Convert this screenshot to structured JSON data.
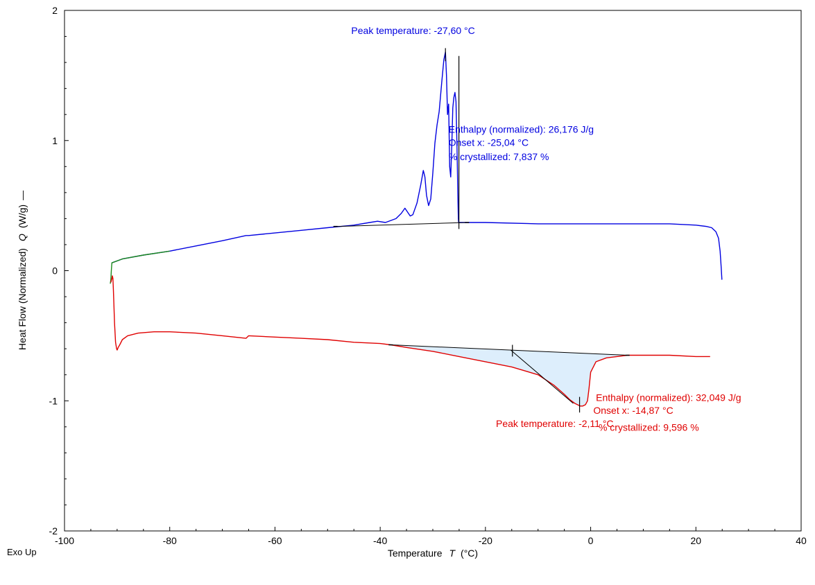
{
  "chart_data": {
    "type": "line",
    "title": "",
    "xlabel": "Temperature",
    "xlabel_symbol": "T",
    "xlabel_unit": "(°C)",
    "ylabel": "Heat Flow (Normalized)",
    "ylabel_symbol": "Q",
    "ylabel_unit": "(W/g)",
    "corner_label": "Exo Up",
    "xlim": [
      -100,
      40
    ],
    "ylim": [
      -2,
      2
    ],
    "x_ticks": [
      -100,
      -80,
      -60,
      -40,
      -20,
      0,
      20,
      40
    ],
    "y_ticks": [
      -2,
      -1,
      0,
      1,
      2
    ],
    "grid": false,
    "series": [
      {
        "color": "#0000e0",
        "x": [
          -91.0,
          -89.0,
          -85.0,
          -80.0,
          -75.0,
          -70.0,
          -65.5,
          -65.0,
          -60.0,
          -55.0,
          -50.0,
          -45.0,
          -42.0,
          -40.5,
          -39.0,
          -37.0,
          -36.0,
          -35.3,
          -34.8,
          -34.3,
          -33.8,
          -33.0,
          -32.3,
          -31.8,
          -31.5,
          -31.2,
          -30.8,
          -30.4,
          -30.0,
          -29.6,
          -29.2,
          -28.8,
          -28.3,
          -27.9,
          -27.6,
          -27.4,
          -27.2,
          -27.0,
          -26.8,
          -26.6,
          -26.4,
          -26.2,
          -26.0,
          -25.8,
          -25.6,
          -25.4,
          -25.25,
          -25.15,
          -25.1,
          -25.05,
          -24.9,
          -24.0,
          -20.0,
          -10.0,
          0.0,
          10.0,
          15.0,
          20.0,
          22.0,
          23.0,
          23.8,
          24.3,
          24.6,
          24.8,
          24.95
        ],
        "y": [
          0.06,
          0.09,
          0.12,
          0.15,
          0.19,
          0.23,
          0.27,
          0.27,
          0.29,
          0.31,
          0.33,
          0.35,
          0.37,
          0.38,
          0.37,
          0.4,
          0.44,
          0.48,
          0.45,
          0.42,
          0.43,
          0.52,
          0.66,
          0.77,
          0.72,
          0.58,
          0.5,
          0.55,
          0.75,
          0.98,
          1.12,
          1.22,
          1.45,
          1.62,
          1.68,
          1.5,
          1.2,
          1.28,
          0.8,
          0.72,
          0.95,
          1.25,
          1.33,
          1.37,
          1.3,
          0.95,
          0.6,
          0.4,
          0.37,
          0.37,
          0.37,
          0.37,
          0.37,
          0.36,
          0.36,
          0.36,
          0.36,
          0.35,
          0.34,
          0.33,
          0.3,
          0.25,
          0.15,
          0.03,
          -0.07
        ]
      },
      {
        "color": "#1a8a1a",
        "x": [
          -91.3,
          -91.2,
          -91.1,
          -91.0,
          -89.0,
          -85.0,
          -80.0
        ],
        "y": [
          -0.1,
          -0.07,
          0.0,
          0.06,
          0.09,
          0.12,
          0.15
        ]
      },
      {
        "color": "#e00000",
        "x": [
          -91.2,
          -91.0,
          -90.9,
          -90.8,
          -90.7,
          -90.5,
          -90.3,
          -90.1,
          -90.0,
          -89.8,
          -89.5,
          -89.0,
          -88.0,
          -86.0,
          -83.0,
          -80.0,
          -75.0,
          -70.0,
          -65.5,
          -65.0,
          -60.0,
          -55.0,
          -50.0,
          -45.0,
          -40.0,
          -38.0,
          -35.0,
          -30.0,
          -25.0,
          -20.0,
          -15.0,
          -10.0,
          -7.0,
          -5.0,
          -4.0,
          -3.0,
          -2.5,
          -2.0,
          -1.5,
          -1.0,
          -0.6,
          -0.3,
          0.0,
          1.0,
          3.0,
          5.0,
          7.0,
          10.0,
          15.0,
          20.0,
          22.7
        ],
        "y": [
          -0.09,
          -0.06,
          -0.04,
          -0.06,
          -0.15,
          -0.4,
          -0.55,
          -0.6,
          -0.61,
          -0.59,
          -0.57,
          -0.53,
          -0.5,
          -0.48,
          -0.47,
          -0.47,
          -0.48,
          -0.5,
          -0.52,
          -0.5,
          -0.51,
          -0.52,
          -0.53,
          -0.55,
          -0.56,
          -0.57,
          -0.59,
          -0.62,
          -0.66,
          -0.7,
          -0.74,
          -0.8,
          -0.88,
          -0.95,
          -0.99,
          -1.02,
          -1.03,
          -1.04,
          -1.04,
          -1.03,
          -1.0,
          -0.9,
          -0.78,
          -0.7,
          -0.67,
          -0.66,
          -0.65,
          -0.65,
          -0.65,
          -0.66,
          -0.66
        ]
      }
    ],
    "baselines": [
      {
        "color": "#000000",
        "x": [
          -48.5,
          -23.5
        ],
        "y": [
          0.34,
          0.37
        ]
      },
      {
        "color": "#000000",
        "x": [
          -38.0,
          7.0
        ],
        "y": [
          -0.57,
          -0.65
        ]
      }
    ],
    "markers": [
      {
        "color": "#000000",
        "x": -27.6,
        "y1": 1.61,
        "y2": 1.71,
        "type": "peak"
      },
      {
        "color": "#000000",
        "x": -25.04,
        "y1": 0.32,
        "y2": 1.65,
        "type": "onset"
      },
      {
        "color": "#000000",
        "x": -2.11,
        "y1": -1.09,
        "y2": -0.97,
        "type": "peak"
      },
      {
        "color": "#000000",
        "x": -14.87,
        "y1": -0.66,
        "y2": -0.57,
        "type": "onset"
      }
    ],
    "onset_tangent": {
      "color": "#000000",
      "x": [
        -15.2,
        -3.3
      ],
      "y": [
        -0.61,
        -1.02
      ]
    },
    "shaded_region": {
      "fill": "#ddeefc",
      "top_x": [
        -38.0,
        7.0
      ],
      "top_y": [
        -0.57,
        -0.65
      ],
      "bottom_x": [
        -38.0,
        -35.0,
        -30.0,
        -25.0,
        -20.0,
        -15.0,
        -10.0,
        -7.0,
        -5.0,
        -4.0,
        -3.0,
        -2.5,
        -2.0,
        -1.5,
        -1.0,
        -0.6,
        -0.3,
        0.0,
        1.0,
        3.0,
        5.0,
        7.0
      ],
      "bottom_y": [
        -0.57,
        -0.59,
        -0.62,
        -0.66,
        -0.7,
        -0.74,
        -0.8,
        -0.88,
        -0.95,
        -0.99,
        -1.02,
        -1.03,
        -1.04,
        -1.04,
        -1.03,
        -1.0,
        -0.9,
        -0.78,
        -0.7,
        -0.67,
        -0.66,
        -0.65
      ]
    },
    "annotations": [
      {
        "text": "Peak temperature: -27,60 °C",
        "color": "#0000e0",
        "x": -45.5,
        "y": 1.82
      },
      {
        "text": "Enthalpy (normalized): 26,176 J/g",
        "color": "#0000e0",
        "x": -27.0,
        "y": 1.06
      },
      {
        "text": "Onset x: -25,04 °C",
        "color": "#0000e0",
        "x": -27.0,
        "y": 0.96
      },
      {
        "text": "% crystallized: 7,837 %",
        "color": "#0000e0",
        "x": -27.0,
        "y": 0.85
      },
      {
        "text": "Enthalpy (normalized): 32,049 J/g",
        "color": "#e00000",
        "x": 1.0,
        "y": -1.0
      },
      {
        "text": "Onset x: -14,87 °C",
        "color": "#e00000",
        "x": 0.5,
        "y": -1.1
      },
      {
        "text": "Peak temperature: -2,11 °C",
        "color": "#e00000",
        "x": -18.0,
        "y": -1.2
      },
      {
        "text": "% crystallized: 9,596 %",
        "color": "#e00000",
        "x": 1.5,
        "y": -1.23
      }
    ]
  }
}
